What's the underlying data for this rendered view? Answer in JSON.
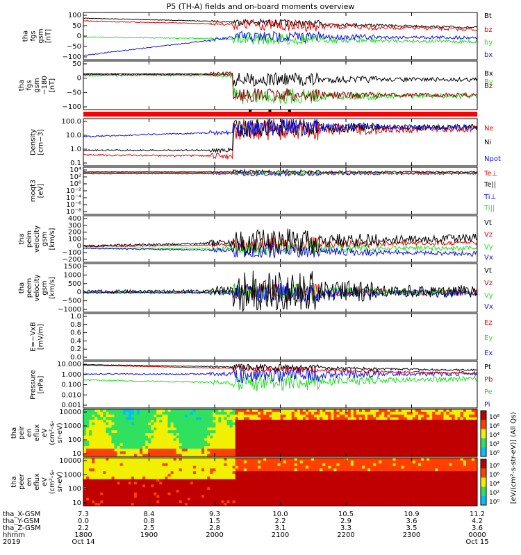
{
  "title": "P5 (TH-A) fields and on-board moments overview",
  "colors": {
    "black": "#000000",
    "red": "#e00000",
    "green": "#22dd22",
    "blue": "#1010e0",
    "darkred": "#8b0000"
  },
  "chart_data": [
    {
      "type": "line",
      "ylabel": [
        "tha",
        "fgs",
        "gsm",
        "[nT]"
      ],
      "yticks": [
        "100",
        "50",
        "0",
        "−50",
        "−100"
      ],
      "ylim": [
        -100,
        100
      ],
      "series": [
        {
          "name": "Bt",
          "color": "#000000"
        },
        {
          "name": "bz",
          "color": "#e00000"
        },
        {
          "name": "by",
          "color": "#22dd22"
        },
        {
          "name": "bx",
          "color": "#1010e0"
        }
      ]
    },
    {
      "type": "line",
      "ylabel": [
        "tha",
        "fgs",
        "gsm",
        "−180",
        "[nT]"
      ],
      "yticks": [
        "50",
        "0",
        "−50",
        "−100"
      ],
      "ylim": [
        -120,
        50
      ],
      "series": [
        {
          "name": "Bx",
          "color": "#000000"
        },
        {
          "name": "By",
          "color": "#22dd22"
        },
        {
          "name": "Bz",
          "color": "#8b0000"
        }
      ]
    },
    {
      "type": "line",
      "ylabel": [
        "Density",
        "[cm−3]"
      ],
      "yticks": [
        "100.0",
        "10.0",
        "1.0",
        "0.1"
      ],
      "ylim": [
        0.1,
        100
      ],
      "log": true,
      "series": [
        {
          "name": "Ne",
          "color": "#e00000"
        },
        {
          "name": "Ni",
          "color": "#000000"
        },
        {
          "name": "Npot",
          "color": "#1010e0"
        }
      ]
    },
    {
      "type": "line",
      "ylabel": [
        "moqt3",
        "[eV]"
      ],
      "yticks": [
        "10⁴",
        "10²",
        "10⁰",
        "10⁻²",
        "10⁻⁴",
        "10⁻⁶",
        "10⁻⁸"
      ],
      "log": true,
      "series": [
        {
          "name": "Te⊥",
          "color": "#e00000"
        },
        {
          "name": "Te||",
          "color": "#000000"
        },
        {
          "name": "Ti⊥",
          "color": "#1010e0"
        },
        {
          "name": "Ti||",
          "color": "#22dd22"
        }
      ]
    },
    {
      "type": "line",
      "ylabel": [
        "tha",
        "peim",
        "velocity",
        "gsm",
        "[km/s]"
      ],
      "yticks": [
        "400",
        "300",
        "200",
        "100",
        "0",
        "−100",
        "−200"
      ],
      "ylim": [
        -200,
        400
      ],
      "series": [
        {
          "name": "Vt",
          "color": "#000000"
        },
        {
          "name": "Vz",
          "color": "#e00000"
        },
        {
          "name": "Vy",
          "color": "#22dd22"
        },
        {
          "name": "Vx",
          "color": "#1010e0"
        }
      ]
    },
    {
      "type": "line",
      "ylabel": [
        "tha",
        "peem",
        "velocity",
        "gsm",
        "[km/s]"
      ],
      "yticks": [
        "1500",
        "1000",
        "500",
        "0",
        "−500",
        "−1000"
      ],
      "ylim": [
        -1000,
        1500
      ],
      "series": [
        {
          "name": "Vt",
          "color": "#000000"
        },
        {
          "name": "Vz",
          "color": "#e00000"
        },
        {
          "name": "Vy",
          "color": "#22dd22"
        },
        {
          "name": "Vx",
          "color": "#1010e0"
        }
      ]
    },
    {
      "type": "line",
      "ylabel": [
        "E=−VxB",
        "[mV/m]"
      ],
      "yticks": [
        "1.0",
        "0.8",
        "0.6",
        "0.4",
        "0.2",
        "0.0"
      ],
      "ylim": [
        0,
        1
      ],
      "series": [
        {
          "name": "Ez",
          "color": "#e00000"
        },
        {
          "name": "Ey",
          "color": "#22dd22"
        },
        {
          "name": "Ex",
          "color": "#1010e0"
        }
      ]
    },
    {
      "type": "line",
      "ylabel": [
        "Pressure",
        "[nPa]"
      ],
      "yticks": [
        "10.000",
        "1.000",
        "0.100",
        "0.010",
        "0.001"
      ],
      "ylim": [
        0.001,
        10
      ],
      "log": true,
      "series": [
        {
          "name": "Pt",
          "color": "#000000"
        },
        {
          "name": "Pb",
          "color": "#e00000"
        },
        {
          "name": "Pe",
          "color": "#22dd22"
        },
        {
          "name": "Pi",
          "color": "#1010e0"
        }
      ]
    },
    {
      "type": "heatmap",
      "ylabel": [
        "tha",
        "peir",
        "en",
        "eflux",
        "eV",
        "(cm²-s-",
        "sr-eV)"
      ],
      "yticks": [
        "10000",
        "1000",
        "100",
        "10"
      ],
      "log": true
    },
    {
      "type": "heatmap",
      "ylabel": [
        "tha",
        "peer",
        "en",
        "eflux",
        "eV",
        "(cm²-s-",
        "sr-eV)"
      ],
      "yticks": [
        "10000",
        "1000",
        "100",
        "10"
      ],
      "log": true
    }
  ],
  "colorbar": {
    "upper_ticks": [
      "10⁸",
      "10⁶",
      "10⁴",
      "10²",
      "10⁰"
    ],
    "lower_ticks": [
      "10⁸",
      "10⁶",
      "10⁴",
      "10²",
      "10⁰"
    ],
    "label": "[eV/(cm²-s-str-eV)] (All Qs)"
  },
  "x_axis": {
    "row_labels": [
      "tha_X-GSM",
      "tha_Y-GSM",
      "tha_Z-GSM",
      "hhmm",
      "2019"
    ],
    "columns": [
      [
        "7.3",
        "0.0",
        "2.2",
        "1800",
        "Oct 14"
      ],
      [
        "8.4",
        "0.8",
        "2.5",
        "1900",
        ""
      ],
      [
        "9.3",
        "1.5",
        "2.8",
        "2000",
        ""
      ],
      [
        "10.0",
        "2.2",
        "3.1",
        "2100",
        ""
      ],
      [
        "10.5",
        "2.9",
        "3.3",
        "2200",
        ""
      ],
      [
        "10.9",
        "3.6",
        "3.5",
        "2300",
        ""
      ],
      [
        "11.2",
        "4.2",
        "3.6",
        "0000",
        "Oct 15"
      ]
    ]
  }
}
